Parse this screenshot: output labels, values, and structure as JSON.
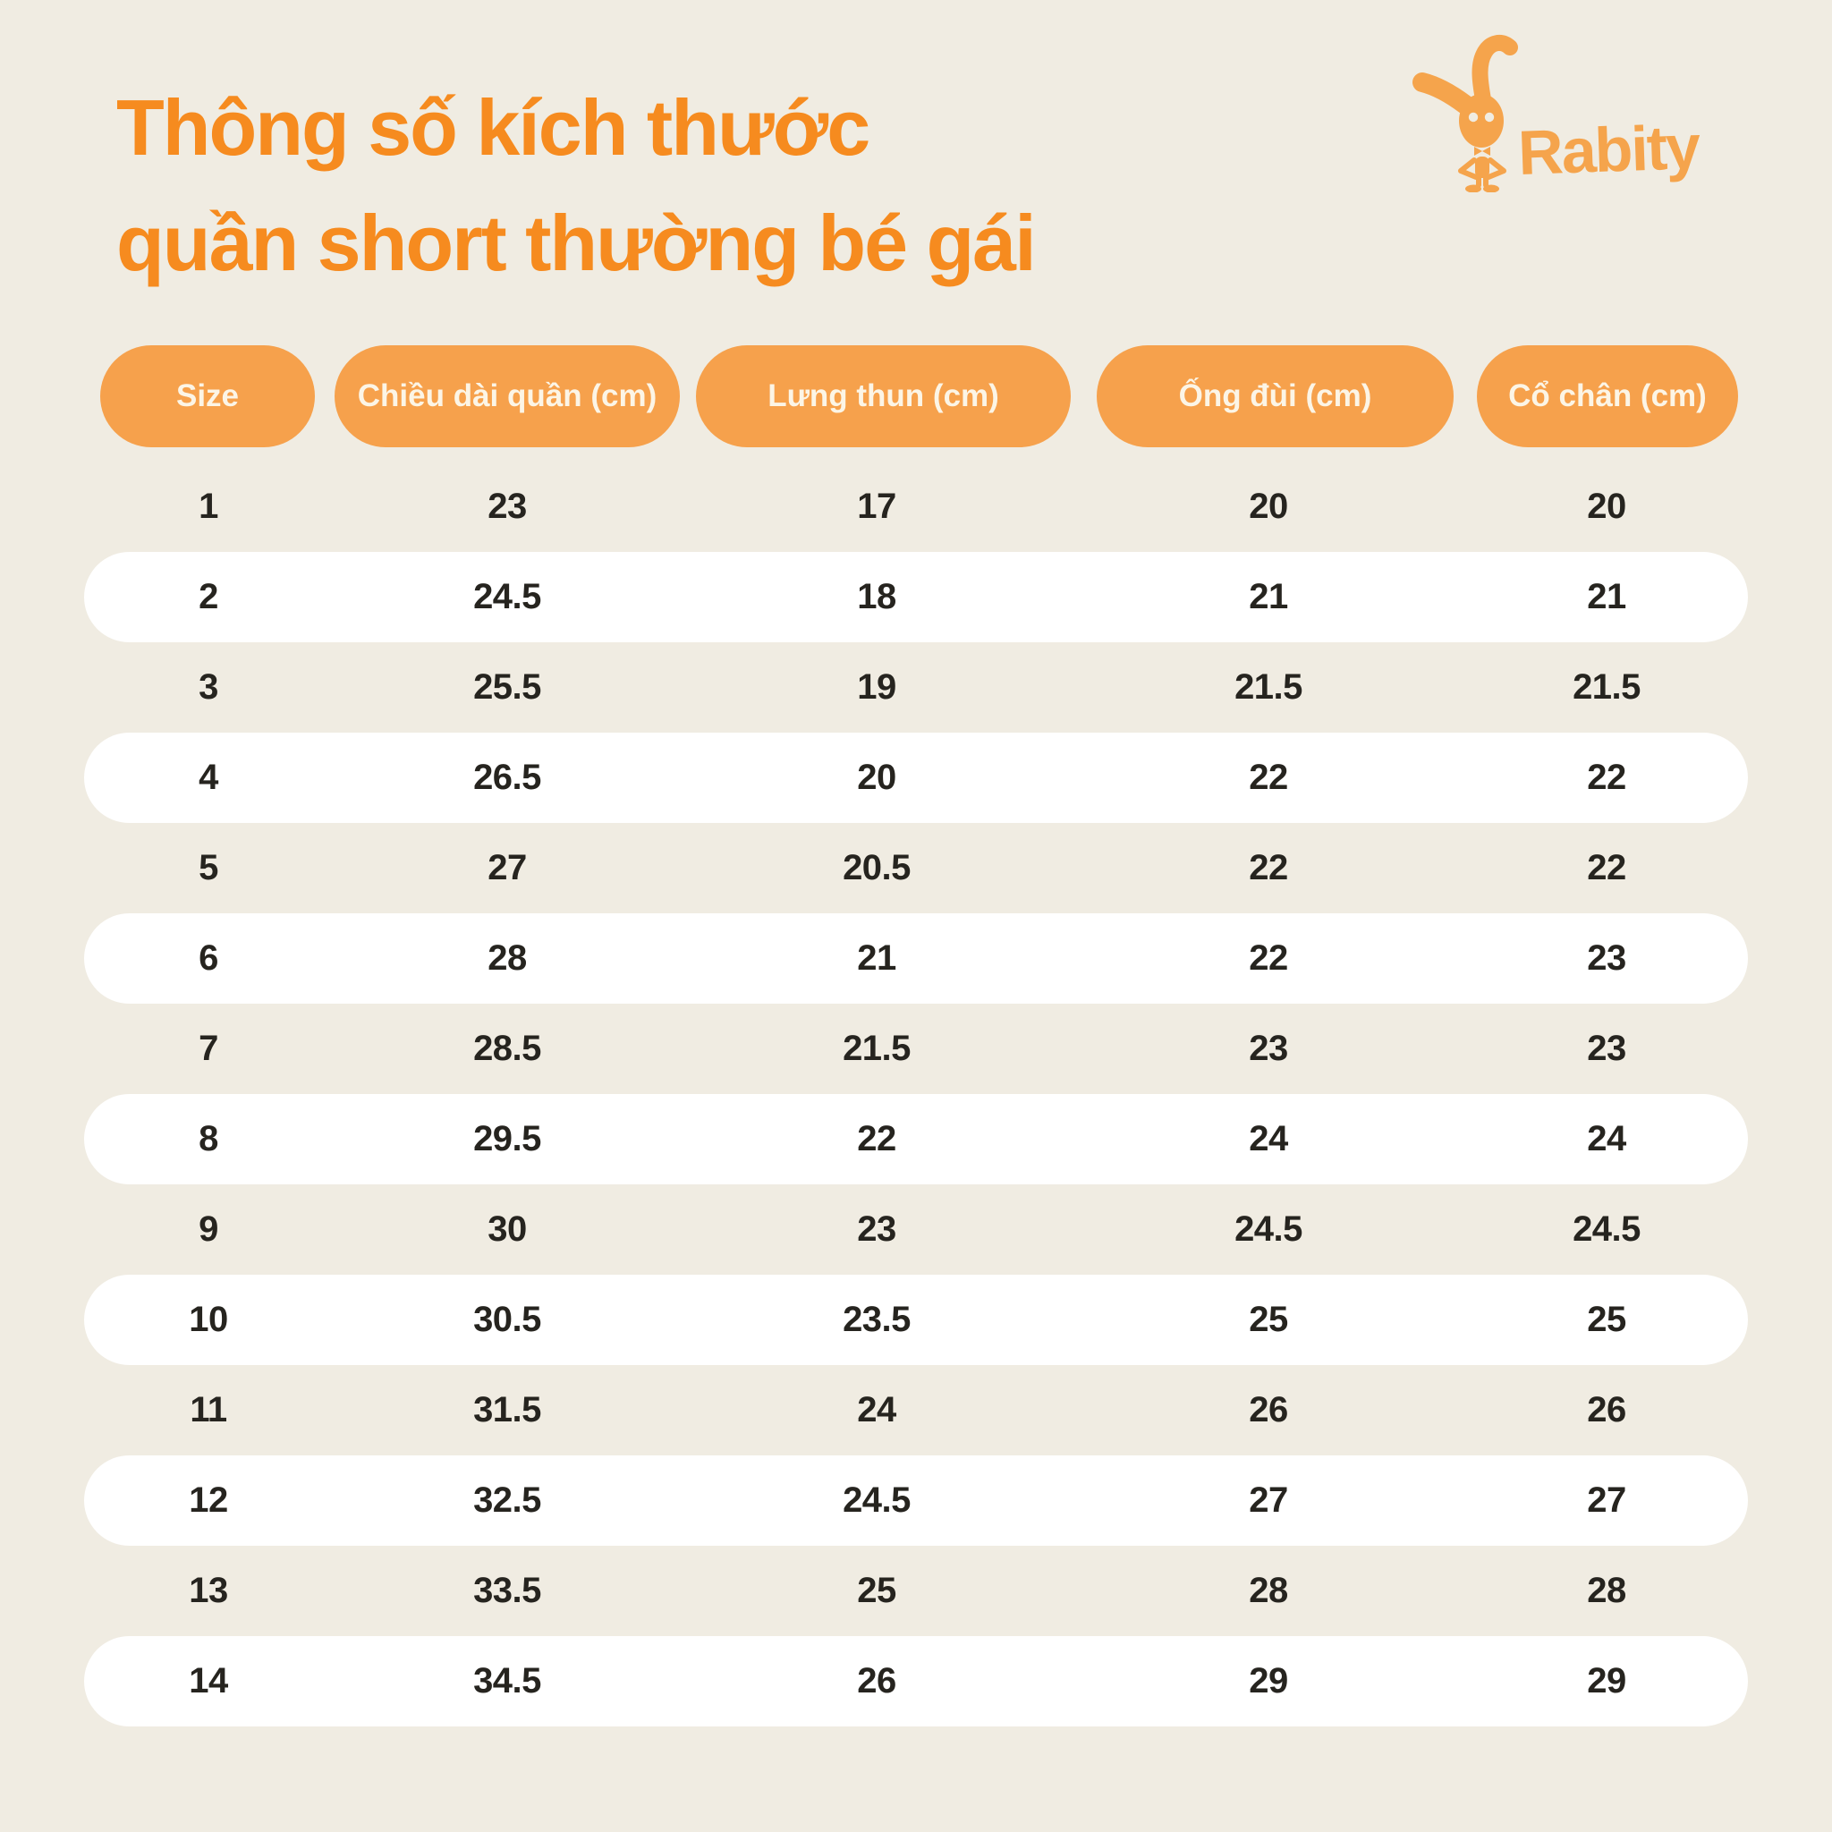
{
  "title": {
    "line1": "Thông số kích thước",
    "line2": "quần short thường bé gái"
  },
  "logo": {
    "brand": "Rabity"
  },
  "colors": {
    "background": "#F0ECE2",
    "title_orange": "#F68B1F",
    "header_pill_orange": "#F6A14C",
    "header_text_cream": "#FCF5E6",
    "row_alt_white": "#FFFFFF",
    "body_text": "#26241F",
    "logo_orange": "#F5A44C"
  },
  "chart_data": {
    "type": "table",
    "title": "Thông số kích thước quần short thường bé gái",
    "columns": [
      "Size",
      "Chiều dài quần (cm)",
      "Lưng thun (cm)",
      "Ống đùi (cm)",
      "Cổ chân (cm)"
    ],
    "rows": [
      [
        "1",
        "23",
        "17",
        "20",
        "20"
      ],
      [
        "2",
        "24.5",
        "18",
        "21",
        "21"
      ],
      [
        "3",
        "25.5",
        "19",
        "21.5",
        "21.5"
      ],
      [
        "4",
        "26.5",
        "20",
        "22",
        "22"
      ],
      [
        "5",
        "27",
        "20.5",
        "22",
        "22"
      ],
      [
        "6",
        "28",
        "21",
        "22",
        "23"
      ],
      [
        "7",
        "28.5",
        "21.5",
        "23",
        "23"
      ],
      [
        "8",
        "29.5",
        "22",
        "24",
        "24"
      ],
      [
        "9",
        "30",
        "23",
        "24.5",
        "24.5"
      ],
      [
        "10",
        "30.5",
        "23.5",
        "25",
        "25"
      ],
      [
        "11",
        "31.5",
        "24",
        "26",
        "26"
      ],
      [
        "12",
        "32.5",
        "24.5",
        "27",
        "27"
      ],
      [
        "13",
        "33.5",
        "25",
        "28",
        "28"
      ],
      [
        "14",
        "34.5",
        "26",
        "29",
        "29"
      ]
    ],
    "layout": {
      "alternating_row_highlight": "even rows white pills",
      "legend": "none",
      "grid": "off"
    }
  }
}
